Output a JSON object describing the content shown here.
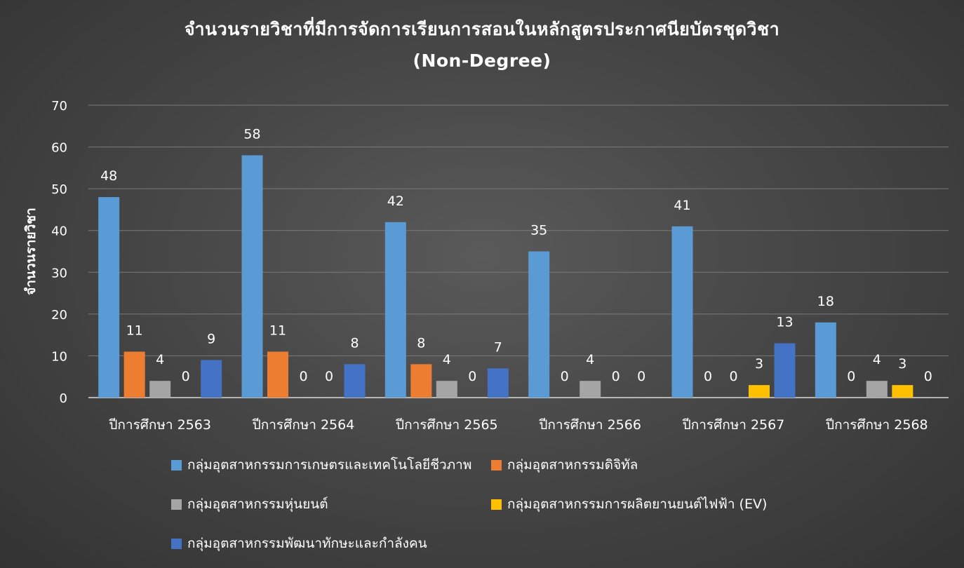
{
  "chart_data": {
    "type": "bar",
    "title": "จำนวนรายวิชาที่มีการจัดการเรียนการสอนในหลักสูตรประกาศนียบัตรชุดวิชา",
    "subtitle": "(Non-Degree)",
    "ylabel": "จำนวนรายวิชา",
    "xlabel": "",
    "ylim": [
      0,
      70
    ],
    "yticks": [
      0,
      10,
      20,
      30,
      40,
      50,
      60,
      70
    ],
    "grid": true,
    "legend_position": "bottom",
    "categories": [
      "ปีการศึกษา 2563",
      "ปีการศึกษา 2564",
      "ปีการศึกษา 2565",
      "ปีการศึกษา 2566",
      "ปีการศึกษา 2567",
      "ปีการศึกษา 2568"
    ],
    "series": [
      {
        "name": "กลุ่มอุตสาหกรรมการเกษตรและเทคโนโลยีชีวภาพ",
        "color": "#5b9bd5",
        "values": [
          48,
          58,
          42,
          35,
          41,
          18
        ]
      },
      {
        "name": "กลุ่มอุตสาหกรรมดิจิทัล",
        "color": "#ed7d31",
        "values": [
          11,
          11,
          8,
          0,
          0,
          0
        ]
      },
      {
        "name": "กลุ่มอุตสาหกรรมหุ่นยนต์",
        "color": "#a5a5a5",
        "values": [
          4,
          0,
          4,
          4,
          0,
          4
        ]
      },
      {
        "name": "กลุ่มอุตสาหกรรมการผลิตยานยนต์ไฟฟ้า (EV)",
        "color": "#ffc000",
        "values": [
          0,
          0,
          0,
          0,
          3,
          3
        ]
      },
      {
        "name": "กลุ่มอุตสาหกรรมพัฒนาทักษะและกำลังคน",
        "color": "#4472c4",
        "values": [
          9,
          8,
          7,
          0,
          13,
          0
        ]
      }
    ]
  }
}
